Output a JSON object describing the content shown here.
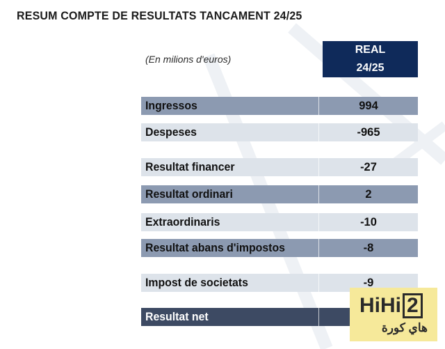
{
  "title": "RESUM COMPTE DE RESULTATS TANCAMENT 24/25",
  "units_note": "(En milions d'euros)",
  "column_header": {
    "line1": "REAL",
    "line2": "24/25"
  },
  "rows": [
    {
      "label": "Ingressos",
      "value": "994"
    },
    {
      "label": "Despeses",
      "value": "-965"
    },
    {
      "label": "Resultat financer",
      "value": "-27"
    },
    {
      "label": "Resultat ordinari",
      "value": "2"
    },
    {
      "label": "Extraordinaris",
      "value": "-10"
    },
    {
      "label": "Resultat abans d'impostos",
      "value": "-8"
    },
    {
      "label": "Impost de societats",
      "value": "-9"
    },
    {
      "label": "Resultat net",
      "value": ""
    }
  ],
  "watermark": {
    "logo_text": "HiHi",
    "logo_number": "2",
    "arabic": "هاي كورة"
  },
  "colors": {
    "header_bg": "#0f2a5a",
    "row_light": "#dde3ea",
    "row_mid": "#8c9ab1",
    "row_dark": "#3d4a63",
    "badge_bg": "#f6e99a"
  }
}
